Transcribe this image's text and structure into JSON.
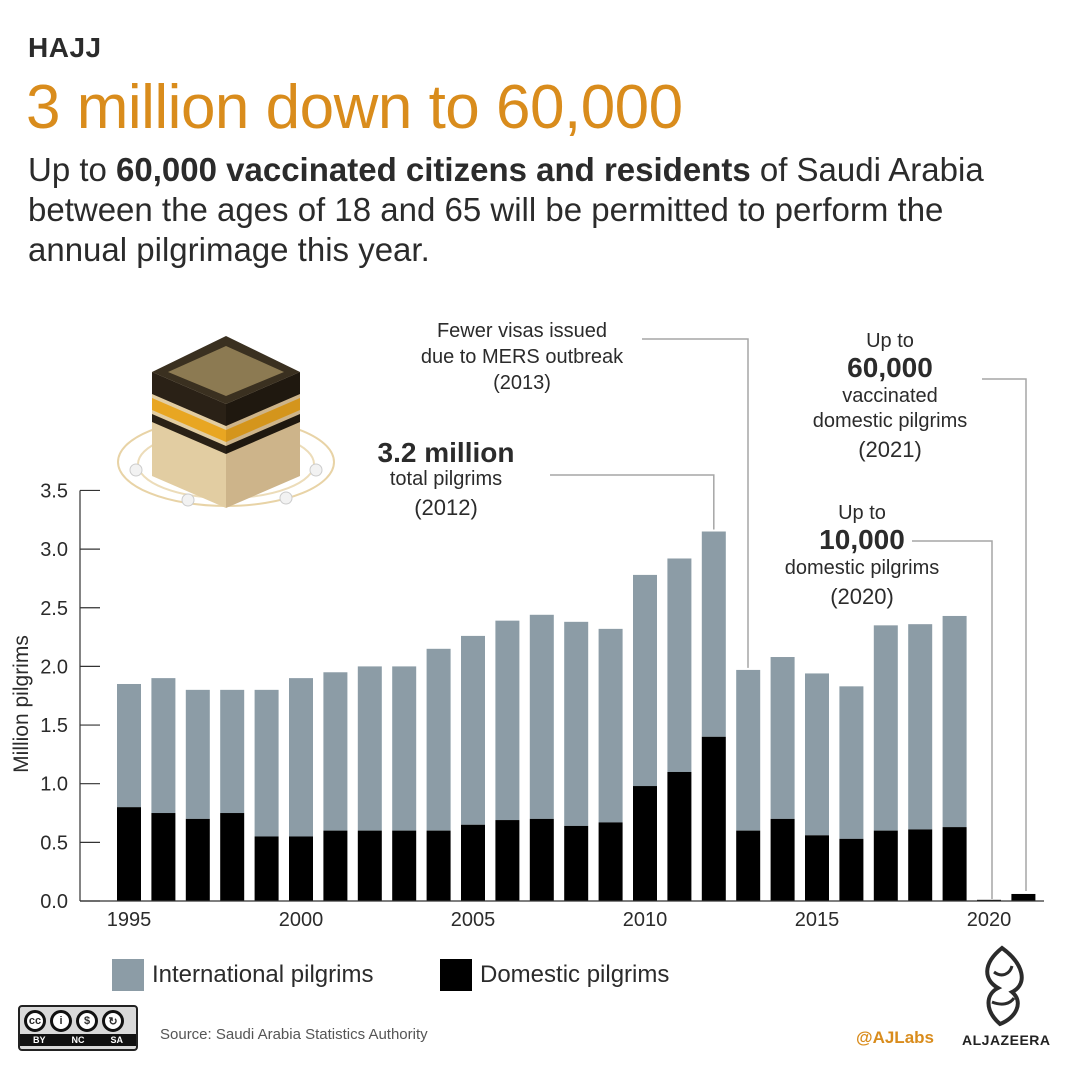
{
  "header": {
    "kicker": "HAJJ",
    "title": "3 million down to 60,000",
    "subtitle_pre": "Up to ",
    "subtitle_bold": "60,000 vaccinated citizens and residents",
    "subtitle_post": " of Saudi Arabia between the ages of 18 and 65 will be permitted to perform the annual pilgrimage this year."
  },
  "chart_data": {
    "type": "bar",
    "stacked": true,
    "ylabel": "Million pilgrims",
    "ylim": [
      0,
      3.5
    ],
    "yticks": [
      "0.0",
      "0.5",
      "1.0",
      "1.5",
      "2.0",
      "2.5",
      "3.0",
      "3.5"
    ],
    "xticks": [
      1995,
      2000,
      2005,
      2010,
      2015,
      2020
    ],
    "x": [
      1995,
      1996,
      1997,
      1998,
      1999,
      2000,
      2001,
      2002,
      2003,
      2004,
      2005,
      2006,
      2007,
      2008,
      2009,
      2010,
      2011,
      2012,
      2013,
      2014,
      2015,
      2016,
      2017,
      2018,
      2019,
      2020,
      2021
    ],
    "series": [
      {
        "name": "Domestic pilgrims",
        "color": "#000000",
        "values": [
          0.8,
          0.75,
          0.7,
          0.75,
          0.55,
          0.55,
          0.6,
          0.6,
          0.6,
          0.6,
          0.65,
          0.69,
          0.7,
          0.64,
          0.67,
          0.98,
          1.1,
          1.4,
          0.6,
          0.7,
          0.56,
          0.53,
          0.6,
          0.61,
          0.63,
          0.01,
          0.06
        ]
      },
      {
        "name": "International pilgrims",
        "color": "#8c9ca6",
        "values": [
          1.05,
          1.15,
          1.1,
          1.05,
          1.25,
          1.35,
          1.35,
          1.4,
          1.4,
          1.55,
          1.61,
          1.7,
          1.74,
          1.74,
          1.65,
          1.8,
          1.82,
          1.75,
          1.37,
          1.38,
          1.38,
          1.3,
          1.75,
          1.75,
          1.8,
          0,
          0
        ]
      }
    ],
    "annotations": [
      {
        "year": 2012,
        "lines": [
          "3.2 million",
          "total pilgrims",
          "(2012)"
        ]
      },
      {
        "year": 2013,
        "lines": [
          "Fewer visas issued",
          "due to MERS outbreak",
          "(2013)"
        ]
      },
      {
        "year": 2020,
        "lines": [
          "Up to",
          "10,000",
          "domestic pilgrims",
          "(2020)"
        ]
      },
      {
        "year": 2021,
        "lines": [
          "Up to",
          "60,000",
          "vaccinated",
          "domestic pilgrims",
          "(2021)"
        ]
      }
    ]
  },
  "legend": {
    "international": "International pilgrims",
    "domestic": "Domestic pilgrims"
  },
  "footer": {
    "license_labels": [
      "BY",
      "NC",
      "SA"
    ],
    "source": "Source: Saudi Arabia Statistics Authority",
    "handle": "@AJLabs",
    "brand": "ALJAZEERA"
  },
  "colors": {
    "accent": "#d98c1c",
    "international": "#8c9ca6",
    "domestic": "#000000",
    "leader": "#a6a6a6"
  }
}
